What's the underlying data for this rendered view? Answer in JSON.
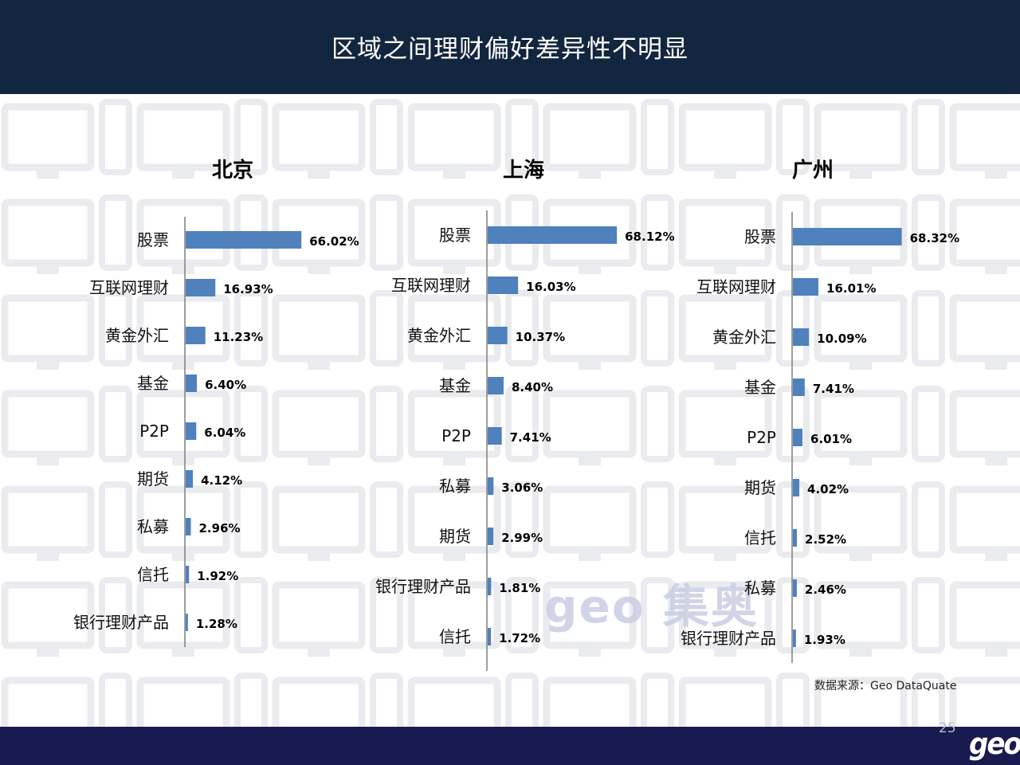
{
  "title": "区域之间理财偏好差异性不明显",
  "source": "数据来源：Geo  DataQuate",
  "page_number": "25",
  "logo_text": "geo",
  "watermark_text": "geo 集奥",
  "colors": {
    "header": "#13263f",
    "footer": "#191a4f",
    "bar": "#4f81bd"
  },
  "chart_data": [
    {
      "type": "bar",
      "orientation": "horizontal",
      "title": "北京",
      "categories": [
        "股票",
        "互联网理财",
        "黄金外汇",
        "基金",
        "P2P",
        "期货",
        "私募",
        "信托",
        "银行理财产品"
      ],
      "values": [
        66.02,
        16.93,
        11.23,
        6.4,
        6.04,
        4.12,
        2.96,
        1.92,
        1.28
      ],
      "labels": [
        "66.02%",
        "16.93%",
        "11.23%",
        "6.40%",
        "6.04%",
        "4.12%",
        "2.96%",
        "1.92%",
        "1.28%"
      ]
    },
    {
      "type": "bar",
      "orientation": "horizontal",
      "title": "上海",
      "categories": [
        "股票",
        "互联网理财",
        "黄金外汇",
        "基金",
        "P2P",
        "私募",
        "期货",
        "银行理财产品",
        "信托"
      ],
      "values": [
        68.12,
        16.03,
        10.37,
        8.4,
        7.41,
        3.06,
        2.99,
        1.81,
        1.72
      ],
      "labels": [
        "68.12%",
        "16.03%",
        "10.37%",
        "8.40%",
        "7.41%",
        "3.06%",
        "2.99%",
        "1.81%",
        "1.72%"
      ]
    },
    {
      "type": "bar",
      "orientation": "horizontal",
      "title": "广州",
      "categories": [
        "股票",
        "互联网理财",
        "黄金外汇",
        "基金",
        "P2P",
        "期货",
        "信托",
        "私募",
        "银行理财产品"
      ],
      "values": [
        68.32,
        16.01,
        10.09,
        7.41,
        6.01,
        4.02,
        2.52,
        2.46,
        1.93
      ],
      "labels": [
        "68.32%",
        "16.01%",
        "10.09%",
        "7.41%",
        "6.01%",
        "4.02%",
        "2.52%",
        "2.46%",
        "1.93%"
      ]
    }
  ]
}
